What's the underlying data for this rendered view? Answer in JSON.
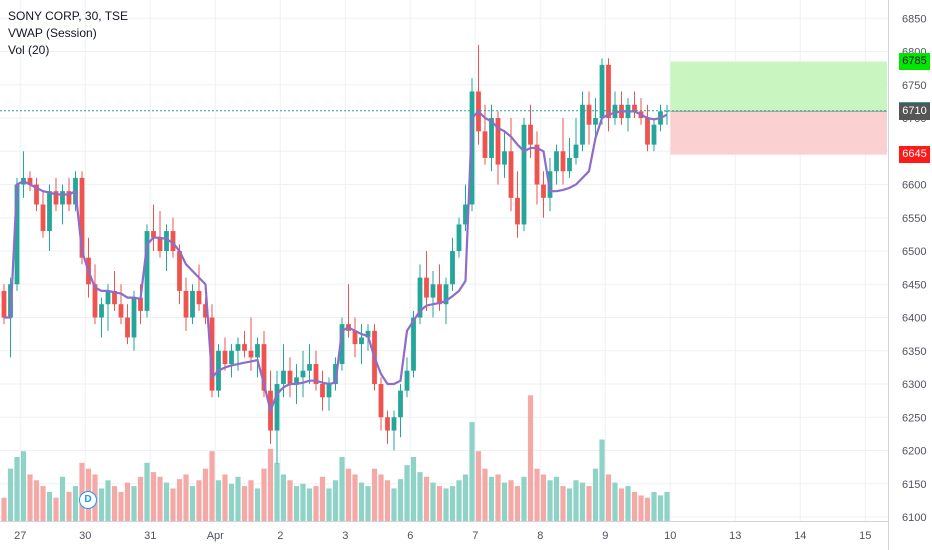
{
  "legend": {
    "symbol": "SONY CORP, 30, TSE",
    "vwap": "VWAP (Session)",
    "vol": "Vol (20)"
  },
  "marker": {
    "label": "D"
  },
  "colors": {
    "up": "#26a69a",
    "down": "#ef5350",
    "vol_up": "#8fd3c7",
    "vol_down": "#f4a9a7",
    "vwap": "#8e6cc9",
    "grid": "#eef0f3",
    "axis_text": "#50535e",
    "current_line": "#26a69a",
    "target_fill": "#c8f5c0",
    "stop_fill": "#fbd0d0",
    "target_tag": "#00e600",
    "stop_tag": "#ff1a1a",
    "entry_tag": "#555555"
  },
  "price_tags": [
    {
      "label": "6785",
      "value": 6785,
      "bg": "#00e600",
      "fg": "#131722"
    },
    {
      "label": "6711",
      "value": 6711,
      "bg": "#26a69a",
      "fg": "#ffffff"
    },
    {
      "label": "6710",
      "value": 6710,
      "bg": "#555555",
      "fg": "#ffffff"
    },
    {
      "label": "6645",
      "value": 6645,
      "bg": "#ff1a1a",
      "fg": "#ffffff"
    }
  ],
  "chart_data": {
    "type": "candlestick",
    "title": "SONY CORP, 30, TSE",
    "ylim": [
      6100,
      6870
    ],
    "y_ticks": [
      6100,
      6150,
      6200,
      6250,
      6300,
      6350,
      6400,
      6450,
      6500,
      6550,
      6600,
      6650,
      6700,
      6750,
      6800,
      6850
    ],
    "x_ticks": [
      {
        "label": "27",
        "bar": 2.5
      },
      {
        "label": "30",
        "bar": 12.5
      },
      {
        "label": "31",
        "bar": 22.5
      },
      {
        "label": "Apr",
        "bar": 32.5
      },
      {
        "label": "2",
        "bar": 42.5
      },
      {
        "label": "3",
        "bar": 52.5
      },
      {
        "label": "6",
        "bar": 62.5
      },
      {
        "label": "7",
        "bar": 72.5
      },
      {
        "label": "8",
        "bar": 82.5
      },
      {
        "label": "9",
        "bar": 92.5
      },
      {
        "label": "10",
        "bar": 102.5
      },
      {
        "label": "13",
        "bar": 112.5
      },
      {
        "label": "14",
        "bar": 122.5
      },
      {
        "label": "15",
        "bar": 132.5
      }
    ],
    "candles": [
      [
        6440,
        6450,
        6390,
        6400
      ],
      [
        6400,
        6460,
        6340,
        6450
      ],
      [
        6450,
        6610,
        6440,
        6600
      ],
      [
        6600,
        6650,
        6580,
        6610
      ],
      [
        6610,
        6620,
        6590,
        6600
      ],
      [
        6600,
        6610,
        6560,
        6570
      ],
      [
        6570,
        6590,
        6520,
        6530
      ],
      [
        6530,
        6600,
        6500,
        6590
      ],
      [
        6590,
        6610,
        6560,
        6570
      ],
      [
        6570,
        6600,
        6540,
        6590
      ],
      [
        6590,
        6610,
        6560,
        6570
      ],
      [
        6570,
        6620,
        6560,
        6610
      ],
      [
        6610,
        6620,
        6480,
        6490
      ],
      [
        6490,
        6520,
        6430,
        6450
      ],
      [
        6450,
        6480,
        6390,
        6400
      ],
      [
        6400,
        6430,
        6370,
        6420
      ],
      [
        6420,
        6450,
        6380,
        6440
      ],
      [
        6440,
        6470,
        6410,
        6420
      ],
      [
        6420,
        6450,
        6390,
        6400
      ],
      [
        6400,
        6420,
        6360,
        6370
      ],
      [
        6370,
        6440,
        6350,
        6430
      ],
      [
        6430,
        6450,
        6390,
        6410
      ],
      [
        6410,
        6540,
        6400,
        6530
      ],
      [
        6530,
        6570,
        6500,
        6520
      ],
      [
        6520,
        6560,
        6490,
        6500
      ],
      [
        6500,
        6540,
        6470,
        6530
      ],
      [
        6530,
        6550,
        6490,
        6500
      ],
      [
        6500,
        6510,
        6420,
        6440
      ],
      [
        6440,
        6460,
        6380,
        6400
      ],
      [
        6400,
        6450,
        6390,
        6440
      ],
      [
        6440,
        6480,
        6410,
        6420
      ],
      [
        6420,
        6430,
        6390,
        6400
      ],
      [
        6400,
        6420,
        6280,
        6290
      ],
      [
        6290,
        6360,
        6280,
        6350
      ],
      [
        6350,
        6370,
        6320,
        6330
      ],
      [
        6330,
        6360,
        6310,
        6350
      ],
      [
        6350,
        6370,
        6320,
        6360
      ],
      [
        6360,
        6380,
        6340,
        6350
      ],
      [
        6350,
        6400,
        6320,
        6340
      ],
      [
        6340,
        6370,
        6310,
        6360
      ],
      [
        6360,
        6380,
        6280,
        6290
      ],
      [
        6290,
        6320,
        6210,
        6230
      ],
      [
        6230,
        6320,
        6180,
        6300
      ],
      [
        6300,
        6360,
        6280,
        6320
      ],
      [
        6320,
        6340,
        6280,
        6300
      ],
      [
        6300,
        6330,
        6270,
        6310
      ],
      [
        6310,
        6350,
        6280,
        6320
      ],
      [
        6320,
        6360,
        6300,
        6330
      ],
      [
        6330,
        6350,
        6290,
        6300
      ],
      [
        6300,
        6320,
        6260,
        6280
      ],
      [
        6280,
        6310,
        6260,
        6300
      ],
      [
        6300,
        6340,
        6290,
        6330
      ],
      [
        6330,
        6400,
        6320,
        6390
      ],
      [
        6390,
        6450,
        6370,
        6380
      ],
      [
        6380,
        6400,
        6340,
        6360
      ],
      [
        6360,
        6390,
        6330,
        6370
      ],
      [
        6370,
        6390,
        6350,
        6380
      ],
      [
        6380,
        6390,
        6290,
        6300
      ],
      [
        6300,
        6310,
        6230,
        6250
      ],
      [
        6250,
        6260,
        6210,
        6230
      ],
      [
        6230,
        6260,
        6200,
        6250
      ],
      [
        6250,
        6300,
        6220,
        6290
      ],
      [
        6290,
        6340,
        6280,
        6320
      ],
      [
        6320,
        6410,
        6310,
        6400
      ],
      [
        6400,
        6480,
        6390,
        6460
      ],
      [
        6460,
        6500,
        6410,
        6430
      ],
      [
        6430,
        6470,
        6400,
        6450
      ],
      [
        6450,
        6480,
        6410,
        6420
      ],
      [
        6420,
        6460,
        6390,
        6450
      ],
      [
        6450,
        6520,
        6440,
        6500
      ],
      [
        6500,
        6550,
        6490,
        6540
      ],
      [
        6540,
        6600,
        6530,
        6570
      ],
      [
        6570,
        6760,
        6560,
        6740
      ],
      [
        6740,
        6810,
        6660,
        6680
      ],
      [
        6680,
        6720,
        6630,
        6640
      ],
      [
        6640,
        6720,
        6620,
        6700
      ],
      [
        6700,
        6710,
        6600,
        6630
      ],
      [
        6630,
        6680,
        6610,
        6650
      ],
      [
        6650,
        6700,
        6560,
        6580
      ],
      [
        6580,
        6620,
        6520,
        6540
      ],
      [
        6540,
        6700,
        6530,
        6690
      ],
      [
        6690,
        6720,
        6640,
        6660
      ],
      [
        6660,
        6680,
        6570,
        6600
      ],
      [
        6600,
        6620,
        6550,
        6580
      ],
      [
        6580,
        6640,
        6560,
        6620
      ],
      [
        6620,
        6660,
        6600,
        6650
      ],
      [
        6650,
        6700,
        6600,
        6620
      ],
      [
        6620,
        6670,
        6610,
        6640
      ],
      [
        6640,
        6700,
        6630,
        6660
      ],
      [
        6660,
        6740,
        6650,
        6720
      ],
      [
        6720,
        6740,
        6660,
        6690
      ],
      [
        6690,
        6730,
        6670,
        6700
      ],
      [
        6700,
        6790,
        6690,
        6780
      ],
      [
        6780,
        6790,
        6680,
        6700
      ],
      [
        6700,
        6740,
        6690,
        6720
      ],
      [
        6720,
        6740,
        6690,
        6700
      ],
      [
        6700,
        6730,
        6680,
        6720
      ],
      [
        6720,
        6740,
        6700,
        6710
      ],
      [
        6710,
        6730,
        6690,
        6700
      ],
      [
        6700,
        6720,
        6650,
        6660
      ],
      [
        6660,
        6700,
        6650,
        6690
      ],
      [
        6690,
        6720,
        6680,
        6710
      ],
      [
        6710,
        6720,
        6690,
        6711
      ]
    ],
    "vwap": [
      6400,
      6400,
      6600,
      6605,
      6600,
      6595,
      6590,
      6588,
      6585,
      6585,
      6585,
      6590,
      6500,
      6470,
      6445,
      6440,
      6440,
      6438,
      6436,
      6430,
      6430,
      6428,
      6510,
      6520,
      6520,
      6518,
      6512,
      6500,
      6480,
      6470,
      6460,
      6450,
      6310,
      6320,
      6325,
      6328,
      6330,
      6332,
      6334,
      6336,
      6300,
      6260,
      6285,
      6295,
      6300,
      6300,
      6302,
      6305,
      6305,
      6302,
      6300,
      6302,
      6380,
      6385,
      6380,
      6375,
      6372,
      6340,
      6315,
      6300,
      6300,
      6305,
      6380,
      6395,
      6410,
      6418,
      6420,
      6422,
      6425,
      6432,
      6440,
      6455,
      6700,
      6710,
      6700,
      6695,
      6685,
      6680,
      6672,
      6660,
      6650,
      6655,
      6655,
      6650,
      6590,
      6590,
      6592,
      6595,
      6600,
      6610,
      6620,
      6670,
      6700,
      6705,
      6708,
      6710,
      6710,
      6710,
      6705,
      6700,
      6698,
      6700,
      6705
    ],
    "volume": [
      20,
      45,
      55,
      60,
      40,
      35,
      30,
      25,
      20,
      38,
      25,
      30,
      50,
      45,
      40,
      28,
      35,
      30,
      25,
      33,
      30,
      38,
      50,
      42,
      38,
      33,
      28,
      36,
      40,
      30,
      35,
      45,
      60,
      35,
      40,
      32,
      38,
      30,
      35,
      28,
      45,
      62,
      50,
      40,
      35,
      30,
      32,
      28,
      30,
      38,
      28,
      35,
      55,
      45,
      40,
      33,
      30,
      45,
      40,
      35,
      28,
      36,
      48,
      55,
      42,
      38,
      33,
      30,
      28,
      30,
      35,
      40,
      85,
      60,
      45,
      38,
      40,
      33,
      35,
      30,
      38,
      108,
      45,
      40,
      35,
      38,
      30,
      28,
      35,
      33,
      30,
      45,
      70,
      40,
      33,
      28,
      30,
      25,
      22,
      20,
      25,
      22,
      25
    ],
    "current_price": 6711,
    "position": {
      "target": 6785,
      "entry": 6710,
      "stop": 6645,
      "start_bar": 103,
      "end_bar": 135
    }
  }
}
